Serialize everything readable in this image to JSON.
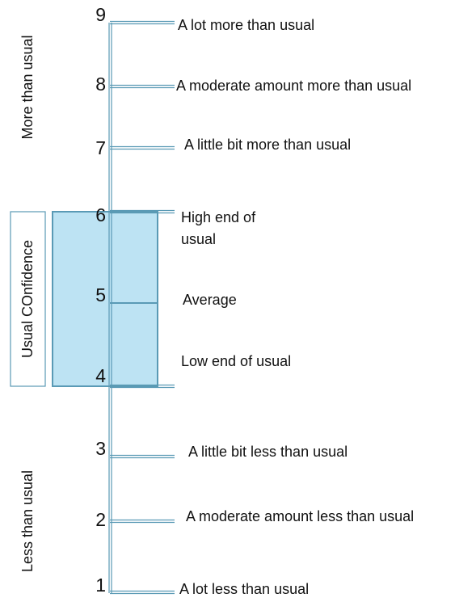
{
  "levels": [
    {
      "number": 9,
      "label": [
        "A lot more than usual"
      ]
    },
    {
      "number": 8,
      "label": [
        "A moderate amount more than usual"
      ]
    },
    {
      "number": 7,
      "label": [
        "A little bit more than usual"
      ]
    },
    {
      "number": 6,
      "label": [
        "High end of",
        "usual"
      ]
    },
    {
      "number": 5,
      "label": [
        "Average"
      ]
    },
    {
      "number": 4,
      "label": [
        "Low end of usual"
      ]
    },
    {
      "number": 3,
      "label": [
        "A little bit less than usual"
      ]
    },
    {
      "number": 2,
      "label": [
        "A moderate amount less than usual"
      ]
    },
    {
      "number": 1,
      "label": [
        "A lot less than usual"
      ]
    }
  ],
  "side_labels": {
    "more": "More than usual",
    "usual": "Usual COnfidence",
    "less": "Less than usual"
  }
}
